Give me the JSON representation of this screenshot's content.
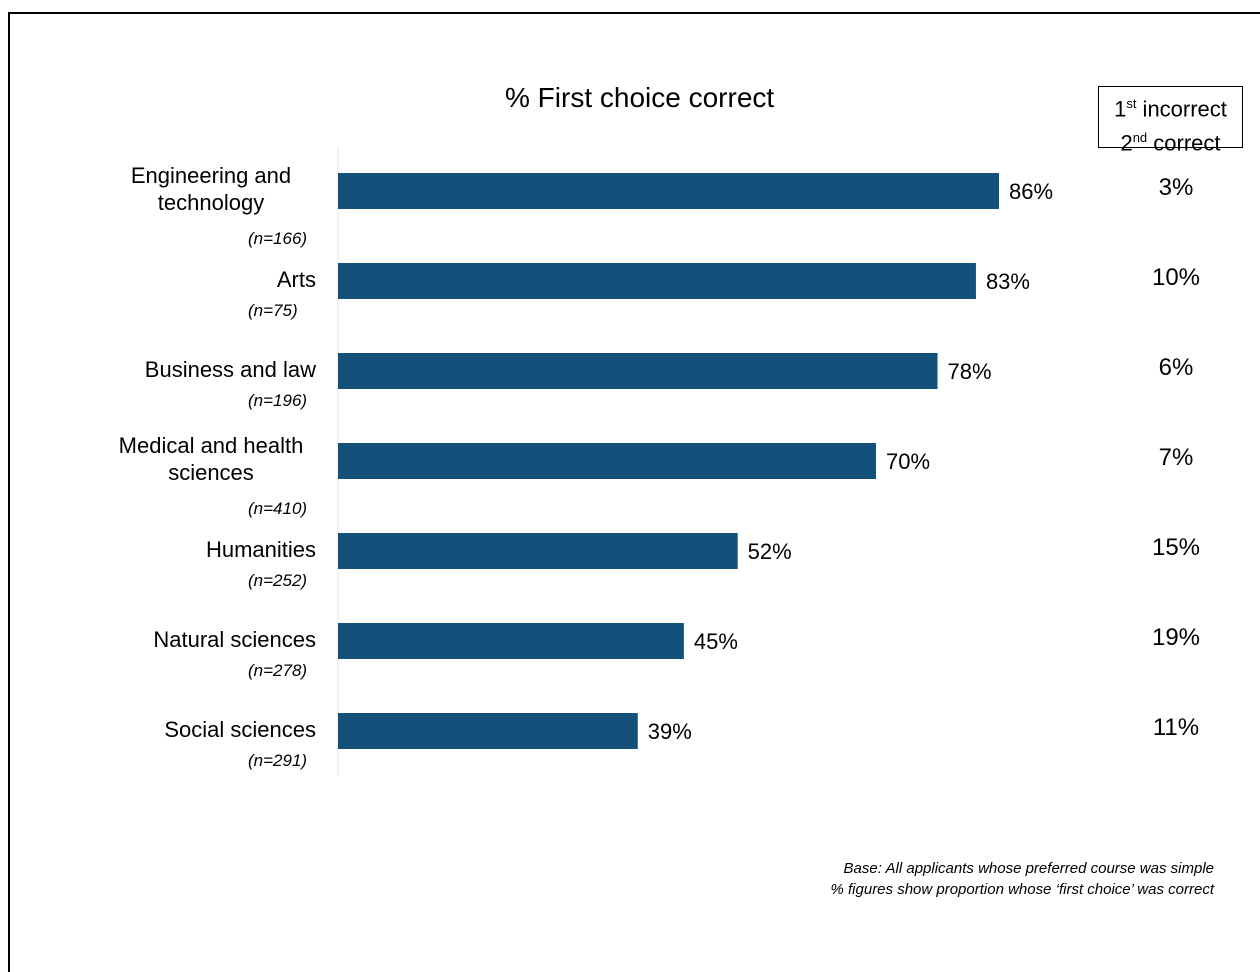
{
  "chart_data": {
    "type": "bar",
    "orientation": "horizontal",
    "title": "% First choice correct",
    "bar_color": "#13507A",
    "xlim": [
      0,
      100
    ],
    "categories": [
      {
        "label": "Engineering and technology",
        "n": "(n=166)",
        "value": 86,
        "value_label": "86%",
        "second": "3%"
      },
      {
        "label": "Arts",
        "n": "(n=75)",
        "value": 83,
        "value_label": "83%",
        "second": "10%"
      },
      {
        "label": "Business and law",
        "n": "(n=196)",
        "value": 78,
        "value_label": "78%",
        "second": "6%"
      },
      {
        "label": "Medical and health sciences",
        "n": "(n=410)",
        "value": 70,
        "value_label": "70%",
        "second": "7%"
      },
      {
        "label": "Humanities",
        "n": "(n=252)",
        "value": 52,
        "value_label": "52%",
        "second": "15%"
      },
      {
        "label": "Natural sciences",
        "n": "(n=278)",
        "value": 45,
        "value_label": "45%",
        "second": "19%"
      },
      {
        "label": "Social sciences",
        "n": "(n=291)",
        "value": 39,
        "value_label": "39%",
        "second": "11%"
      }
    ],
    "side_header": {
      "line1_num": "1",
      "line1_sup": "st",
      "line1_text": " incorrect",
      "line2_num": "2",
      "line2_sup": "nd",
      "line2_text": " correct"
    },
    "footnote": [
      "Base: All applicants whose preferred course was simple",
      "% figures show proportion whose ‘first choice’ was correct"
    ]
  }
}
